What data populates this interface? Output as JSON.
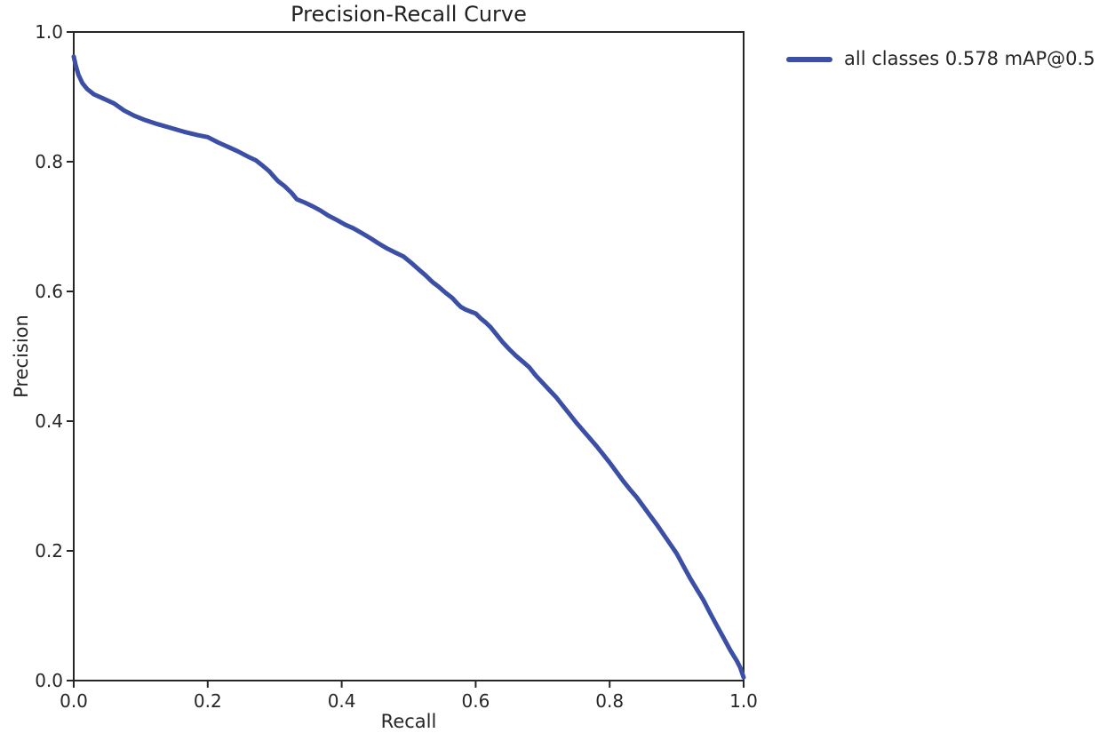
{
  "figure": {
    "background": "#ffffff"
  },
  "colors": {
    "curve": "#3b4fa6",
    "axis": "#262626",
    "text": "#262626",
    "title": "#222222",
    "background": "#ffffff"
  },
  "chart_data": {
    "type": "line",
    "title": "Precision-Recall Curve",
    "xlabel": "Recall",
    "ylabel": "Precision",
    "xlim": [
      0.0,
      1.0
    ],
    "ylim": [
      0.0,
      1.0
    ],
    "xticks": [
      0.0,
      0.2,
      0.4,
      0.6,
      0.8,
      1.0
    ],
    "yticks": [
      0.0,
      0.2,
      0.4,
      0.6,
      0.8,
      1.0
    ],
    "tick_format_decimals": 1,
    "grid": false,
    "legend_position": "outside-upper-right",
    "legend": [
      {
        "label": "all classes 0.578 mAP@0.5",
        "color": "#3b4fa6"
      }
    ],
    "series": [
      {
        "name": "all classes 0.578 mAP@0.5",
        "color": "#3b4fa6",
        "linewidth": 5,
        "points": [
          [
            0.0,
            0.962
          ],
          [
            0.003,
            0.948
          ],
          [
            0.007,
            0.934
          ],
          [
            0.013,
            0.921
          ],
          [
            0.02,
            0.912
          ],
          [
            0.03,
            0.904
          ],
          [
            0.045,
            0.897
          ],
          [
            0.06,
            0.89
          ],
          [
            0.075,
            0.879
          ],
          [
            0.09,
            0.871
          ],
          [
            0.107,
            0.864
          ],
          [
            0.125,
            0.858
          ],
          [
            0.145,
            0.852
          ],
          [
            0.165,
            0.846
          ],
          [
            0.185,
            0.841
          ],
          [
            0.2,
            0.838
          ],
          [
            0.215,
            0.83
          ],
          [
            0.23,
            0.823
          ],
          [
            0.245,
            0.816
          ],
          [
            0.26,
            0.808
          ],
          [
            0.272,
            0.802
          ],
          [
            0.283,
            0.793
          ],
          [
            0.292,
            0.785
          ],
          [
            0.298,
            0.778
          ],
          [
            0.305,
            0.77
          ],
          [
            0.315,
            0.762
          ],
          [
            0.325,
            0.752
          ],
          [
            0.333,
            0.742
          ],
          [
            0.345,
            0.737
          ],
          [
            0.355,
            0.732
          ],
          [
            0.368,
            0.725
          ],
          [
            0.38,
            0.717
          ],
          [
            0.393,
            0.71
          ],
          [
            0.405,
            0.703
          ],
          [
            0.418,
            0.697
          ],
          [
            0.43,
            0.69
          ],
          [
            0.443,
            0.682
          ],
          [
            0.455,
            0.674
          ],
          [
            0.468,
            0.666
          ],
          [
            0.48,
            0.66
          ],
          [
            0.492,
            0.654
          ],
          [
            0.505,
            0.643
          ],
          [
            0.515,
            0.634
          ],
          [
            0.525,
            0.625
          ],
          [
            0.535,
            0.615
          ],
          [
            0.545,
            0.607
          ],
          [
            0.555,
            0.598
          ],
          [
            0.565,
            0.59
          ],
          [
            0.572,
            0.582
          ],
          [
            0.578,
            0.576
          ],
          [
            0.585,
            0.572
          ],
          [
            0.592,
            0.569
          ],
          [
            0.6,
            0.566
          ],
          [
            0.608,
            0.558
          ],
          [
            0.615,
            0.552
          ],
          [
            0.622,
            0.545
          ],
          [
            0.63,
            0.535
          ],
          [
            0.64,
            0.522
          ],
          [
            0.65,
            0.511
          ],
          [
            0.66,
            0.501
          ],
          [
            0.67,
            0.492
          ],
          [
            0.68,
            0.483
          ],
          [
            0.69,
            0.47
          ],
          [
            0.7,
            0.459
          ],
          [
            0.71,
            0.448
          ],
          [
            0.72,
            0.437
          ],
          [
            0.73,
            0.424
          ],
          [
            0.74,
            0.411
          ],
          [
            0.75,
            0.398
          ],
          [
            0.76,
            0.386
          ],
          [
            0.77,
            0.374
          ],
          [
            0.78,
            0.362
          ],
          [
            0.79,
            0.349
          ],
          [
            0.8,
            0.336
          ],
          [
            0.81,
            0.322
          ],
          [
            0.82,
            0.308
          ],
          [
            0.83,
            0.295
          ],
          [
            0.84,
            0.283
          ],
          [
            0.85,
            0.269
          ],
          [
            0.86,
            0.255
          ],
          [
            0.87,
            0.241
          ],
          [
            0.88,
            0.226
          ],
          [
            0.89,
            0.211
          ],
          [
            0.9,
            0.196
          ],
          [
            0.91,
            0.177
          ],
          [
            0.92,
            0.158
          ],
          [
            0.93,
            0.141
          ],
          [
            0.94,
            0.124
          ],
          [
            0.95,
            0.104
          ],
          [
            0.96,
            0.085
          ],
          [
            0.97,
            0.066
          ],
          [
            0.98,
            0.047
          ],
          [
            0.99,
            0.03
          ],
          [
            0.995,
            0.02
          ],
          [
            1.0,
            0.005
          ]
        ]
      }
    ]
  }
}
